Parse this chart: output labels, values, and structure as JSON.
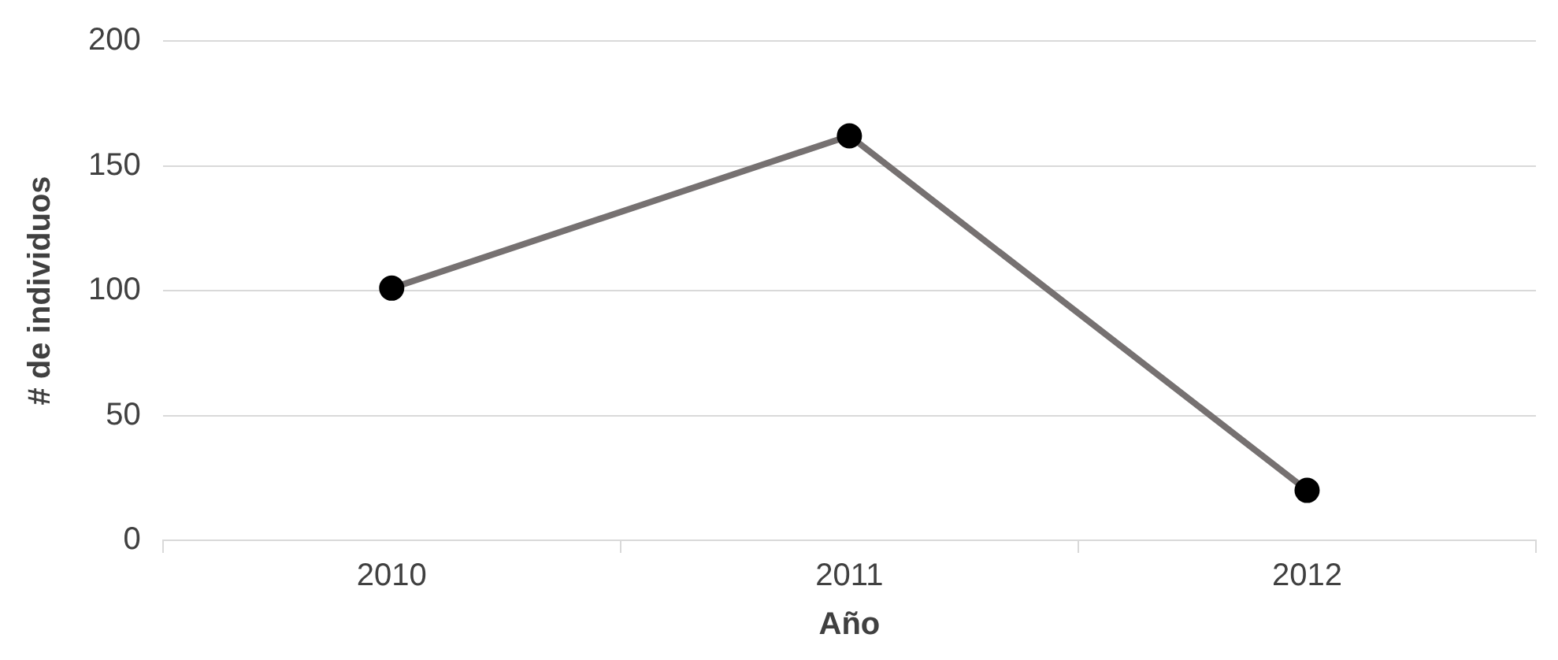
{
  "chart_data": {
    "type": "line",
    "xlabel": "Año",
    "ylabel": "# de individuos",
    "categories": [
      "2010",
      "2011",
      "2012"
    ],
    "series": [
      {
        "color": "#767171",
        "values": [
          101,
          162,
          20
        ]
      }
    ],
    "ylim": [
      0,
      200
    ],
    "yticks": [
      0,
      50,
      100,
      150,
      200
    ],
    "grid": "y",
    "legend": false,
    "marker": "circle",
    "line_style": "solid"
  }
}
